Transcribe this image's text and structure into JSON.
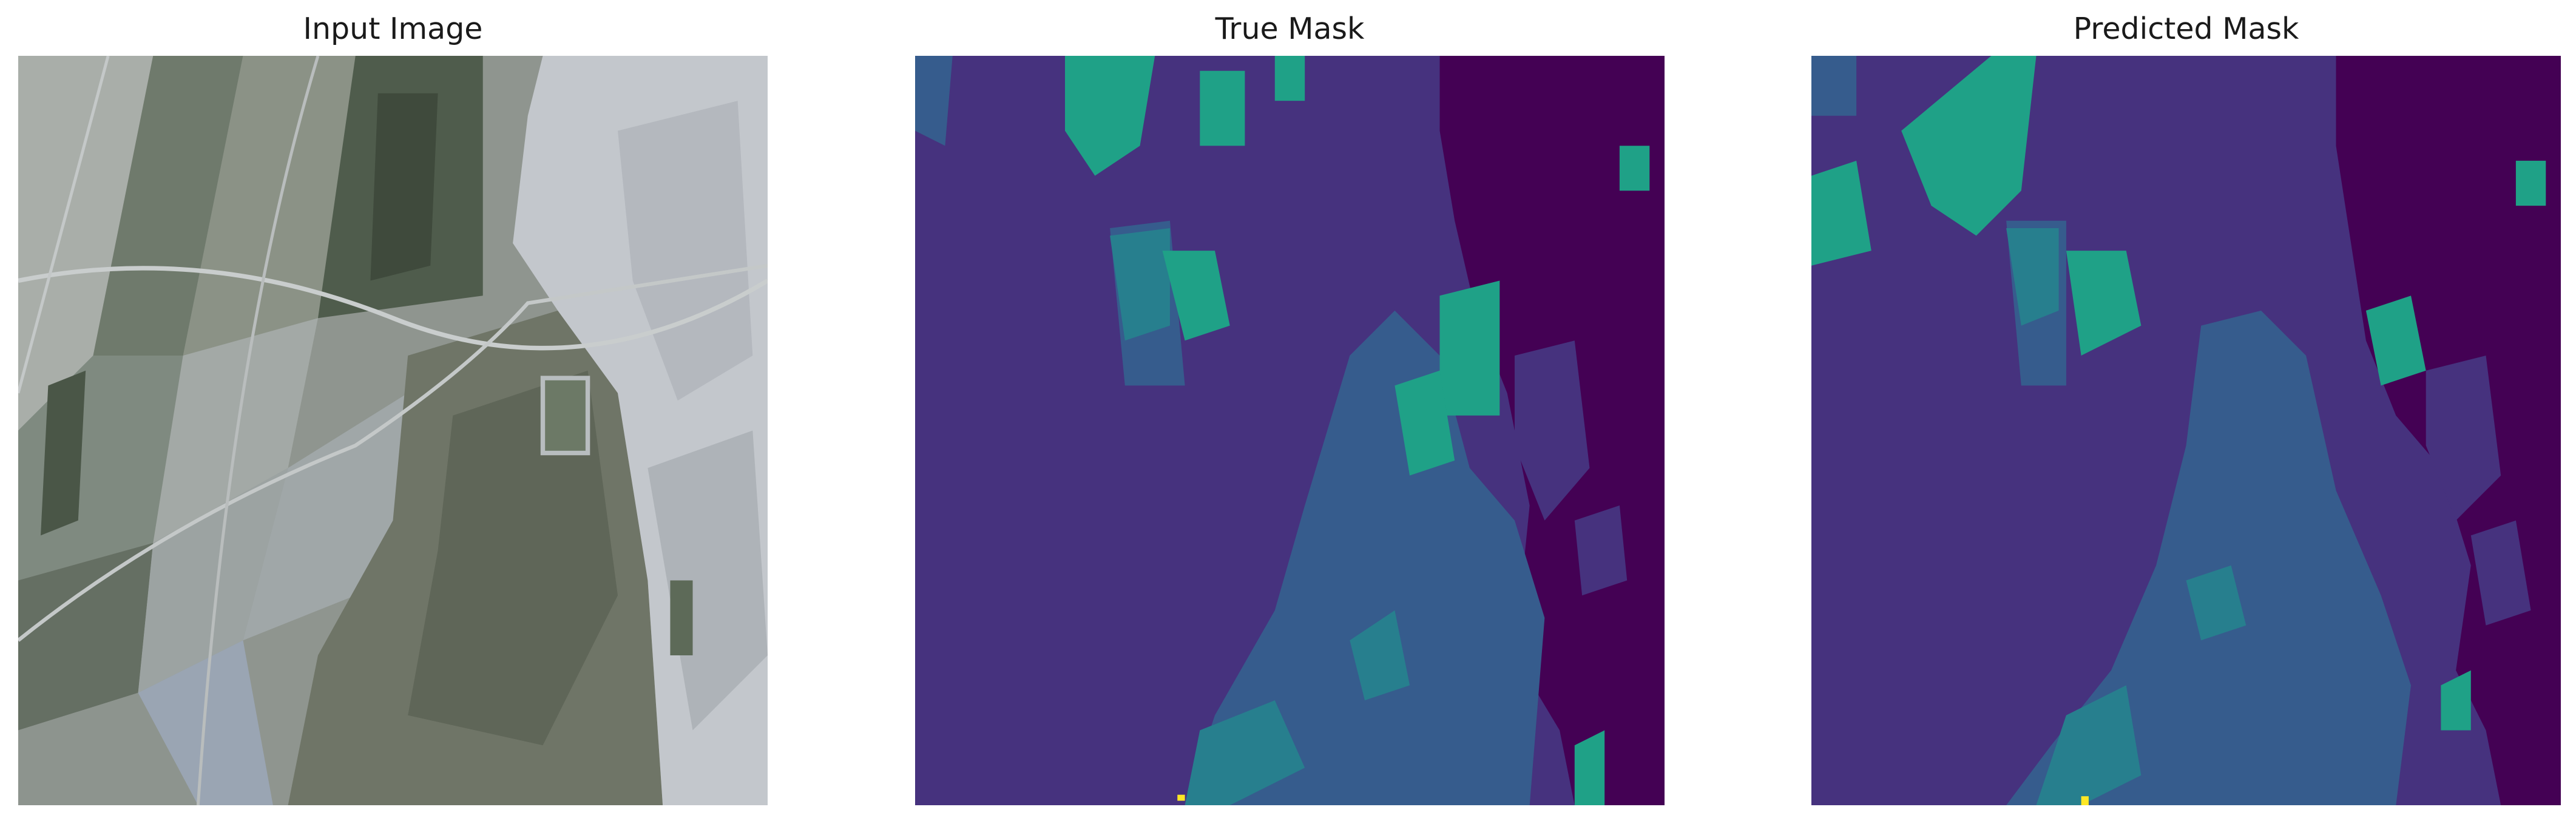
{
  "panels": [
    {
      "title": "Input Image"
    },
    {
      "title": "True Mask"
    },
    {
      "title": "Predicted Mask"
    }
  ],
  "colors": {
    "background": "#ffffff",
    "title_text": "#1a1a1a",
    "mask_class_0": "#440154",
    "mask_class_1": "#46327e",
    "mask_class_2": "#365c8d",
    "mask_class_3": "#277f8e",
    "mask_class_4": "#1fa187",
    "mask_class_5": "#fde725"
  }
}
